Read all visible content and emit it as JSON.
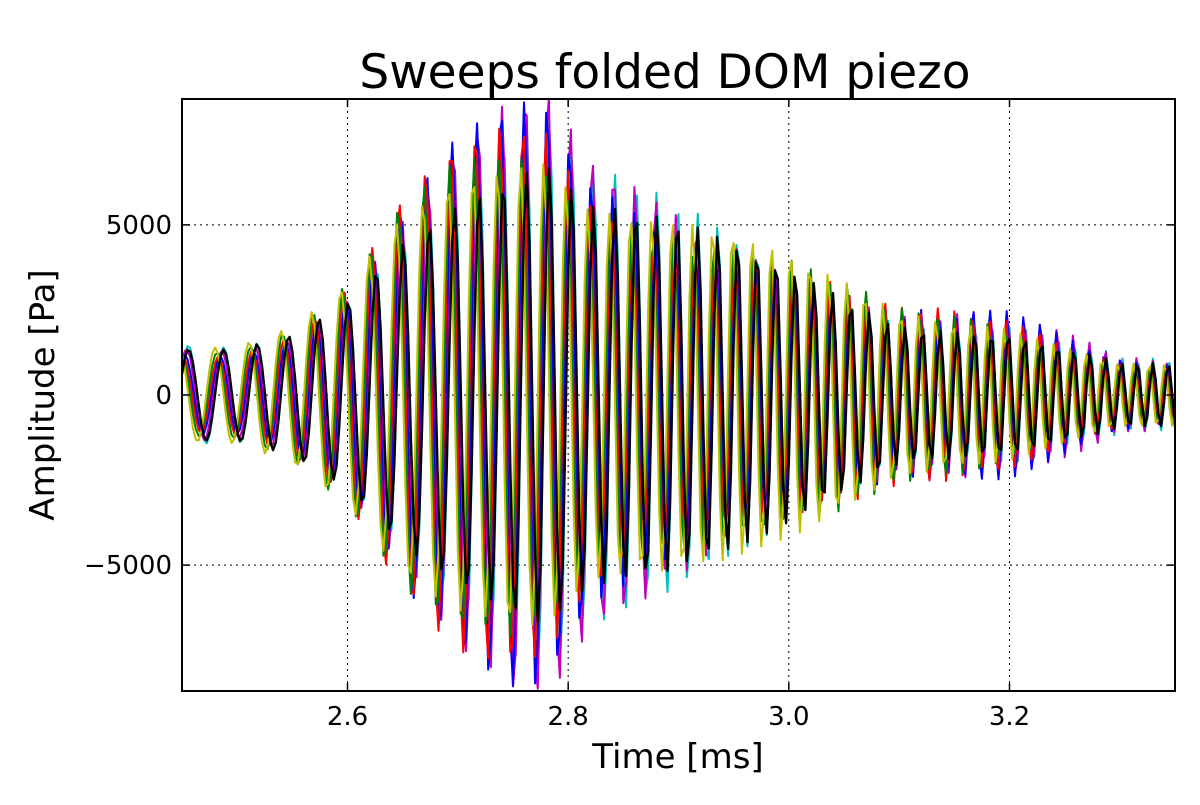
{
  "chart_data": {
    "type": "line",
    "title": "Sweeps folded DOM piezo",
    "xlabel": "Time [ms]",
    "ylabel": "Amplitude [Pa]",
    "xlim": [
      2.45,
      3.35
    ],
    "ylim": [
      -8700,
      8700
    ],
    "x_ticks": [
      2.6,
      2.8,
      3.0,
      3.2
    ],
    "x_tick_labels": [
      "2.6",
      "2.8",
      "3.0",
      "3.2"
    ],
    "y_ticks": [
      -5000,
      0,
      5000
    ],
    "y_tick_labels": [
      "−5000",
      "0",
      "5000"
    ],
    "grid": true,
    "legend": "none",
    "sample_step_ms": 0.0025,
    "envelope": [
      {
        "x": 2.45,
        "amp": 1300
      },
      {
        "x": 2.5,
        "amp": 1300
      },
      {
        "x": 2.55,
        "amp": 1800
      },
      {
        "x": 2.6,
        "amp": 3000
      },
      {
        "x": 2.65,
        "amp": 5300
      },
      {
        "x": 2.7,
        "amp": 6900
      },
      {
        "x": 2.75,
        "amp": 7700
      },
      {
        "x": 2.78,
        "amp": 7800
      },
      {
        "x": 2.82,
        "amp": 6000
      },
      {
        "x": 2.9,
        "amp": 5000
      },
      {
        "x": 3.0,
        "amp": 3800
      },
      {
        "x": 3.1,
        "amp": 2400
      },
      {
        "x": 3.2,
        "amp": 2200
      },
      {
        "x": 3.3,
        "amp": 1000
      },
      {
        "x": 3.35,
        "amp": 900
      }
    ],
    "frequency_khz": [
      {
        "x": 2.45,
        "f": 30
      },
      {
        "x": 2.8,
        "f": 50
      },
      {
        "x": 3.35,
        "f": 72
      }
    ],
    "series": [
      {
        "color": "#00bfbf",
        "phase": 0.0,
        "gain": 1.02
      },
      {
        "color": "#bf00bf",
        "phase": 0.05,
        "gain": 1.04
      },
      {
        "color": "#0000ff",
        "phase": 0.1,
        "gain": 1.0
      },
      {
        "color": "#ff0000",
        "phase": 0.15,
        "gain": 0.98
      },
      {
        "color": "#008000",
        "phase": 0.2,
        "gain": 0.97
      },
      {
        "color": "#bfbf00",
        "phase": 0.25,
        "gain": 0.99
      },
      {
        "color": "#000000",
        "phase": 0.0,
        "gain": 0.92
      }
    ]
  }
}
